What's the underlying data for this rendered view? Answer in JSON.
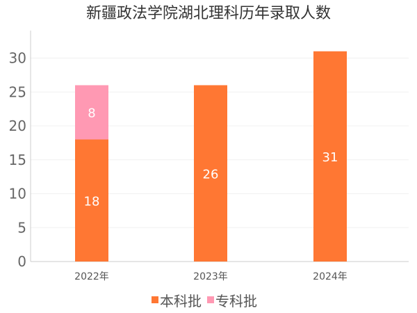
{
  "chart_data": {
    "type": "bar",
    "stacked": true,
    "title": "新疆政法学院湖北理科历年录取人数",
    "categories": [
      "2022年",
      "2023年",
      "2024年"
    ],
    "series": [
      {
        "name": "本科批",
        "values": [
          18,
          26,
          31
        ],
        "color": "#ff7733"
      },
      {
        "name": "专科批",
        "values": [
          8,
          0,
          0
        ],
        "color": "#ff99b3"
      }
    ],
    "ylim": [
      0,
      34
    ],
    "yticks": [
      0,
      5,
      10,
      15,
      20,
      25,
      30
    ],
    "grid": true,
    "legend_position": "bottom-center",
    "xlabel": "",
    "ylabel": ""
  }
}
